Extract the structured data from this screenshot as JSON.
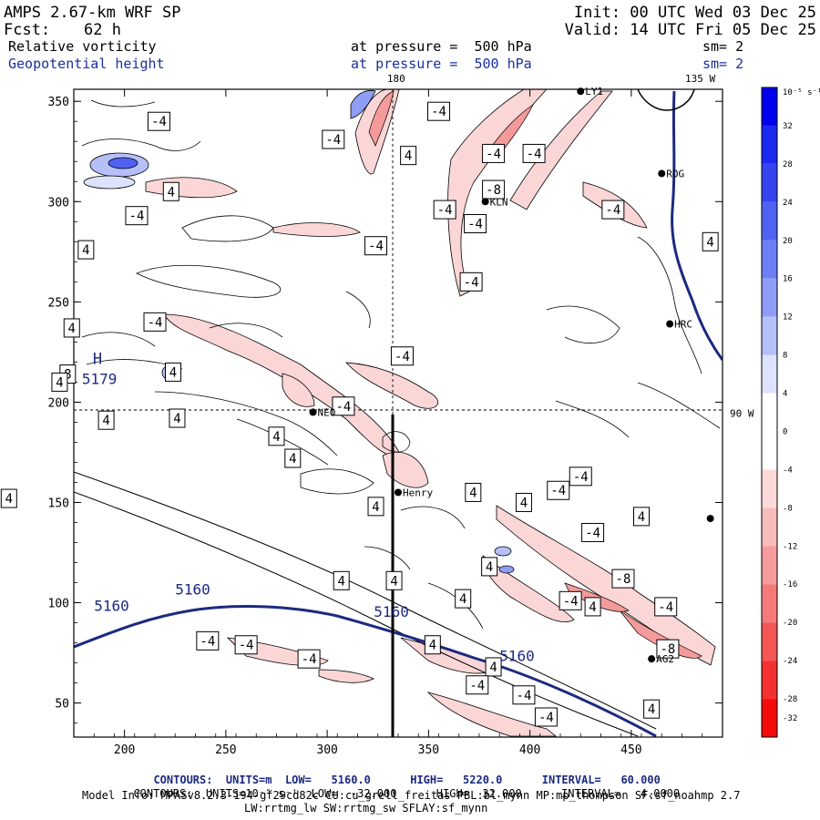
{
  "header": {
    "model": "AMPS 2.67-km WRF SP",
    "fcst_label": "Fcst:",
    "fcst_value": "62 h",
    "init": "Init: 00 UTC Wed 03 Dec 25",
    "valid": "Valid: 14 UTC Fri 05 Dec 25",
    "field1_name": "Relative vorticity",
    "field1_level": "at pressure =  500 hPa",
    "field1_sm": "sm= 2",
    "field2_name": "Geopotential height",
    "field2_level": "at pressure =  500 hPa",
    "field2_sm": "sm= 2"
  },
  "colors": {
    "blue_text": "#1a2fa0",
    "height_contour": "#1c2a80",
    "vort_pos_strong": "#0000ee",
    "vort_neg_strong": "#ff0000"
  },
  "chart_data": {
    "type": "heatmap",
    "xlim": [
      175,
      495
    ],
    "ylim": [
      33,
      356
    ],
    "x_ticks": [
      200,
      250,
      300,
      350,
      400,
      450
    ],
    "y_ticks": [
      50,
      100,
      150,
      200,
      250,
      300,
      350
    ],
    "grid_lines": [
      {
        "label": "180",
        "axis": "x",
        "value": 334
      },
      {
        "label": "90 W",
        "axis": "y",
        "value": 195
      },
      {
        "label": "135 W",
        "axis": "x",
        "value": 484
      }
    ],
    "stations": [
      {
        "name": "ROG",
        "x": 465,
        "y": 314
      },
      {
        "name": "KLN",
        "x": 378,
        "y": 300
      },
      {
        "name": "HRC",
        "x": 469,
        "y": 239
      },
      {
        "name": "NEO",
        "x": 293,
        "y": 195
      },
      {
        "name": "Henry",
        "x": 335,
        "y": 155
      },
      {
        "name": "AG2",
        "x": 460,
        "y": 72
      },
      {
        "name": "LY1",
        "x": 425,
        "y": 355
      },
      {
        "name": "",
        "x": 489,
        "y": 142
      }
    ],
    "height_contours": {
      "units": "m",
      "low": "5160.0",
      "high": "5220.0",
      "interval": "60.000",
      "labels": [
        {
          "text": "5160",
          "x": 185,
          "y": 96
        },
        {
          "text": "5160",
          "x": 225,
          "y": 104
        },
        {
          "text": "5160",
          "x": 323,
          "y": 93
        },
        {
          "text": "5160",
          "x": 385,
          "y": 71
        }
      ],
      "extremum": {
        "type": "H",
        "value": "5179",
        "x": 179,
        "y": 209
      }
    },
    "vorticity_contours": {
      "units": "10^-5 s^-1",
      "low": "-32.000",
      "high": "32.000",
      "interval": "4.0000",
      "box_labels": [
        {
          "t": "-4",
          "x": 217,
          "y": 340
        },
        {
          "t": "-4",
          "x": 303,
          "y": 331
        },
        {
          "t": "-4",
          "x": 355,
          "y": 345
        },
        {
          "t": "4",
          "x": 223,
          "y": 305
        },
        {
          "t": "-4",
          "x": 206,
          "y": 293
        },
        {
          "t": "4",
          "x": 181,
          "y": 276
        },
        {
          "t": "-4",
          "x": 324,
          "y": 278
        },
        {
          "t": "4",
          "x": 340,
          "y": 323
        },
        {
          "t": "-4",
          "x": 382,
          "y": 324
        },
        {
          "t": "-4",
          "x": 402,
          "y": 324
        },
        {
          "t": "-8",
          "x": 382,
          "y": 306
        },
        {
          "t": "-4",
          "x": 373,
          "y": 289
        },
        {
          "t": "-4",
          "x": 358,
          "y": 296
        },
        {
          "t": "-4",
          "x": 441,
          "y": 296
        },
        {
          "t": "4",
          "x": 489,
          "y": 280
        },
        {
          "t": "-4",
          "x": 371,
          "y": 260
        },
        {
          "t": "-4",
          "x": 215,
          "y": 240
        },
        {
          "t": "4",
          "x": 174,
          "y": 237
        },
        {
          "t": "-4",
          "x": 337,
          "y": 223
        },
        {
          "t": "4",
          "x": 224,
          "y": 215
        },
        {
          "t": "8",
          "x": 172,
          "y": 214
        },
        {
          "t": "4",
          "x": 168,
          "y": 210
        },
        {
          "t": "-4",
          "x": 308,
          "y": 198
        },
        {
          "t": "4",
          "x": 226,
          "y": 192
        },
        {
          "t": "4",
          "x": 191,
          "y": 191
        },
        {
          "t": "4",
          "x": 275,
          "y": 183
        },
        {
          "t": "4",
          "x": 283,
          "y": 172
        },
        {
          "t": "4",
          "x": 143,
          "y": 152
        },
        {
          "t": "4",
          "x": 372,
          "y": 155
        },
        {
          "t": "-4",
          "x": 425,
          "y": 163
        },
        {
          "t": "4",
          "x": 397,
          "y": 150
        },
        {
          "t": "4",
          "x": 324,
          "y": 148
        },
        {
          "t": "-4",
          "x": 414,
          "y": 156
        },
        {
          "t": "4",
          "x": 455,
          "y": 143
        },
        {
          "t": "-4",
          "x": 431,
          "y": 135
        },
        {
          "t": "4",
          "x": 380,
          "y": 118
        },
        {
          "t": "4",
          "x": 307,
          "y": 111
        },
        {
          "t": "4",
          "x": 333,
          "y": 111
        },
        {
          "t": "-8",
          "x": 446,
          "y": 112
        },
        {
          "t": "4",
          "x": 367,
          "y": 102
        },
        {
          "t": "-4",
          "x": 420,
          "y": 101
        },
        {
          "t": "4",
          "x": 431,
          "y": 98
        },
        {
          "t": "-4",
          "x": 467,
          "y": 98
        },
        {
          "t": "4",
          "x": 352,
          "y": 79
        },
        {
          "t": "-4",
          "x": 241,
          "y": 81
        },
        {
          "t": "-4",
          "x": 260,
          "y": 79
        },
        {
          "t": "-4",
          "x": 291,
          "y": 72
        },
        {
          "t": "-8",
          "x": 468,
          "y": 77
        },
        {
          "t": "4",
          "x": 382,
          "y": 68
        },
        {
          "t": "-4",
          "x": 374,
          "y": 59
        },
        {
          "t": "-4",
          "x": 397,
          "y": 54
        },
        {
          "t": "-4",
          "x": 408,
          "y": 43
        },
        {
          "t": "4",
          "x": 460,
          "y": 47
        }
      ]
    },
    "colorbar": {
      "unit_label": "10⁻⁵ s⁻¹",
      "levels": [
        "32",
        "28",
        "24",
        "20",
        "16",
        "12",
        "8",
        "4",
        "0",
        "-4",
        "-8",
        "-12",
        "-16",
        "-20",
        "-24",
        "-28",
        "-32"
      ],
      "colors": [
        "#0000ee",
        "#1a2af0",
        "#3445f0",
        "#4f62f2",
        "#6d7ff4",
        "#8f9df6",
        "#b5bff8",
        "#dde3fc",
        "#ffffff",
        "#ffffff",
        "#fcdada",
        "#f9bcbc",
        "#f79c9c",
        "#f57a7a",
        "#f45656",
        "#f43030",
        "#f50a0a"
      ]
    }
  },
  "footer": {
    "line1_prefix": "CONTOURS:  UNITS=m  LOW=   5160.0",
    "line1_high": "HIGH=   5220.0",
    "line1_interval": "INTERVAL=   60.000",
    "line2_prefix": "CONTOURS:  UNITS=10⁻⁵ s⁻¹  LOW=  -32.000",
    "line2_high": "HIGH=  32.000",
    "line2_interval": "INTERVAL=   4.0000",
    "model_info": "Model Info: MPASv8.2.3-194-gf29cd82c CU:cu_grell_freitas PBL:bl_mynn MP:mp_thompson SF:sf_noahmp 2.7",
    "model_info2": "LW:rrtmg_lw SW:rrtmg_sw SFLAY:sf_mynn"
  }
}
